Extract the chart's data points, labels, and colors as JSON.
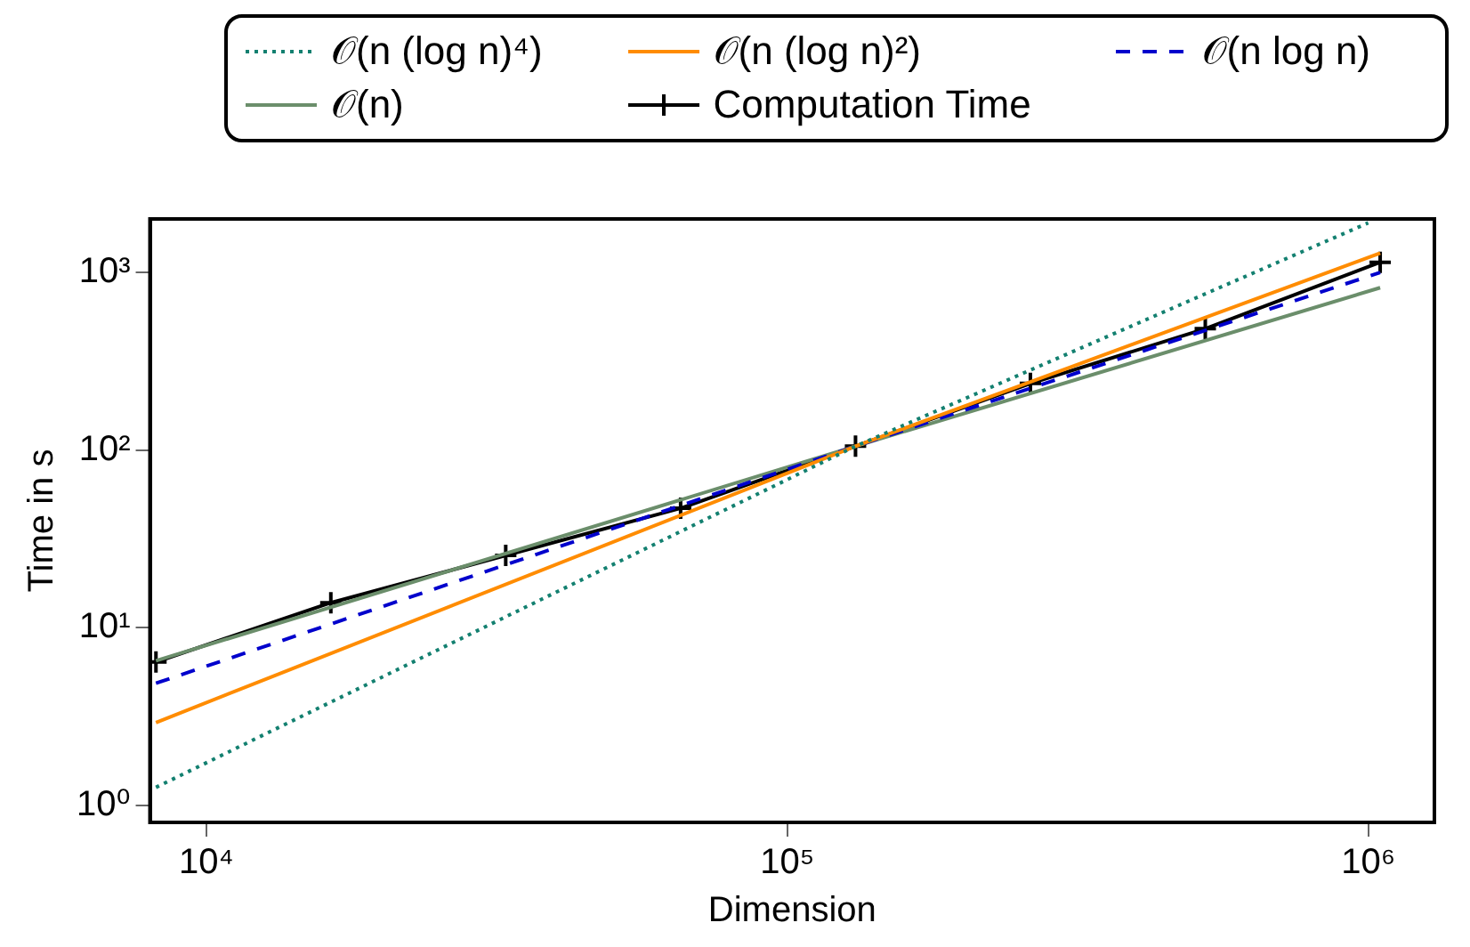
{
  "chart_data": {
    "type": "line",
    "xlabel": "Dimension",
    "ylabel": "Time in s",
    "log": "xy",
    "grid": false,
    "legend": "top",
    "xlim": [
      8000,
      1300000
    ],
    "ylim": [
      0.8,
      2000
    ],
    "xticks": [
      {
        "value": 10000,
        "label": "10⁴"
      },
      {
        "value": 100000,
        "label": "10⁵"
      },
      {
        "value": 1000000,
        "label": "10⁶"
      }
    ],
    "yticks": [
      {
        "value": 1,
        "label": "10⁰"
      },
      {
        "value": 10,
        "label": "10¹"
      },
      {
        "value": 100,
        "label": "10²"
      },
      {
        "value": 1000,
        "label": "10³"
      }
    ],
    "series": [
      {
        "name": "𝒪(n (log n)⁴)",
        "color": "#138070",
        "line_style": "dotted",
        "marker": "none",
        "x": [
          8192,
          131072,
          1000000
        ],
        "values": [
          1.26,
          105,
          1900
        ]
      },
      {
        "name": "𝒪(n (log n)²)",
        "color": "#ff8c00",
        "line_style": "solid",
        "marker": "none",
        "x": [
          8192,
          131072,
          1048576
        ],
        "values": [
          2.92,
          105,
          1285
        ]
      },
      {
        "name": "𝒪(n log n)",
        "color": "#0000cc",
        "line_style": "dashed",
        "marker": "none",
        "x": [
          8192,
          131072,
          1048576
        ],
        "values": [
          4.86,
          105,
          1000
        ]
      },
      {
        "name": "𝒪(n)",
        "color": "#6b8e6b",
        "line_style": "solid",
        "marker": "none",
        "x": [
          8192,
          131072,
          1048576
        ],
        "values": [
          6.5,
          105,
          820
        ]
      },
      {
        "name": "Computation Time",
        "color": "#000000",
        "line_style": "solid",
        "marker": "cross",
        "x": [
          8192,
          16384,
          32768,
          65536,
          131072,
          262144,
          524288,
          1048576
        ],
        "values": [
          6.4,
          13.8,
          25.5,
          47,
          105,
          237,
          482,
          1140
        ]
      }
    ]
  }
}
